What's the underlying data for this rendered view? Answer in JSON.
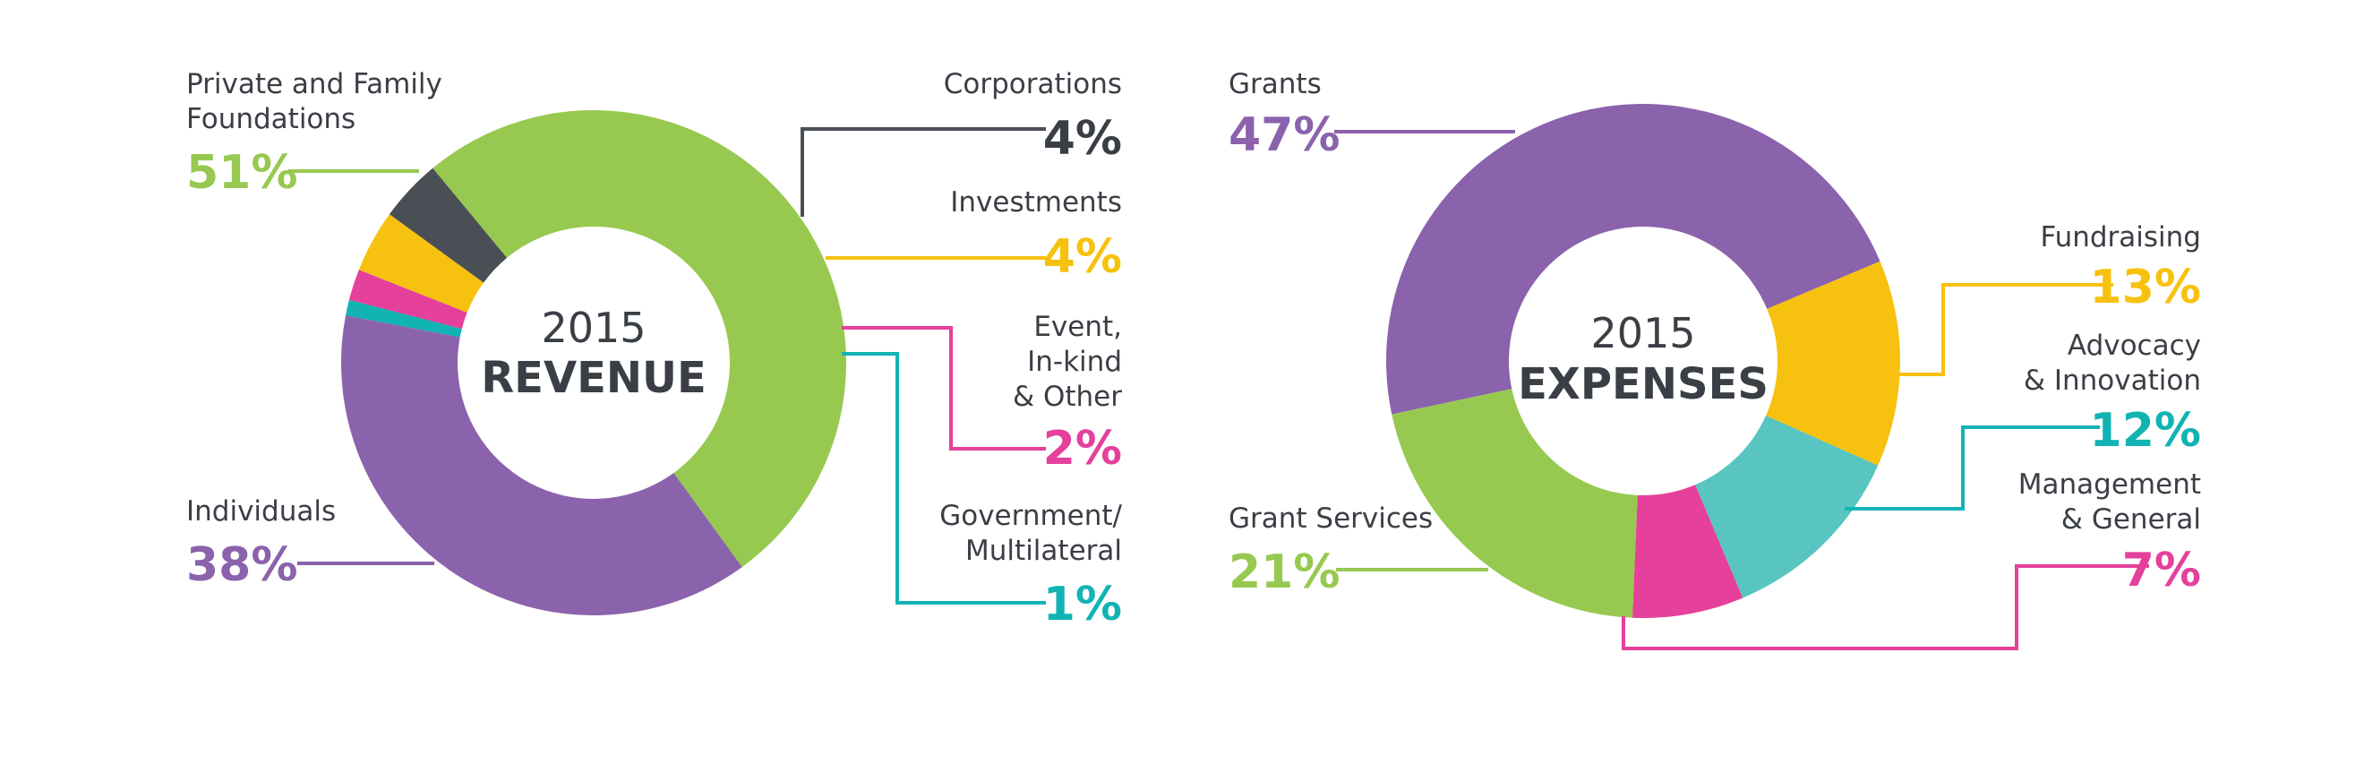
{
  "chart_data": [
    {
      "type": "pie",
      "donut": true,
      "year": "2015",
      "title": "REVENUE",
      "slices": [
        {
          "label": "Private and Family Foundations",
          "label_lines": [
            "Private and Family",
            "Foundations"
          ],
          "value": 51,
          "value_text": "51%",
          "color": "#97c950"
        },
        {
          "label": "Corporations",
          "label_lines": [
            "Corporations"
          ],
          "value": 4,
          "value_text": "4%",
          "color": "#4a4e55",
          "text_color": "#3a3e45"
        },
        {
          "label": "Investments",
          "label_lines": [
            "Investments"
          ],
          "value": 4,
          "value_text": "4%",
          "color": "#f7c10f"
        },
        {
          "label": "Event, In-kind & Other",
          "label_lines": [
            "Event,",
            "In-kind",
            "& Other"
          ],
          "value": 2,
          "value_text": "2%",
          "color": "#e5409b"
        },
        {
          "label": "Government/ Multilateral",
          "label_lines": [
            "Government/",
            "Multilateral"
          ],
          "value": 1,
          "value_text": "1%",
          "color": "#11b3b3"
        },
        {
          "label": "Individuals",
          "label_lines": [
            "Individuals"
          ],
          "value": 38,
          "value_text": "38%",
          "color": "#8b62ac"
        }
      ]
    },
    {
      "type": "pie",
      "donut": true,
      "year": "2015",
      "title": "EXPENSES",
      "slices": [
        {
          "label": "Grants",
          "label_lines": [
            "Grants"
          ],
          "value": 47,
          "value_text": "47%",
          "color": "#8b62ac"
        },
        {
          "label": "Fundraising",
          "label_lines": [
            "Fundraising"
          ],
          "value": 13,
          "value_text": "13%",
          "color": "#f7c10f"
        },
        {
          "label": "Advocacy & Innovation",
          "label_lines": [
            "Advocacy",
            "& Innovation"
          ],
          "value": 12,
          "value_text": "12%",
          "color": "#58c5c0",
          "text_color": "#11b3b3"
        },
        {
          "label": "Management & General",
          "label_lines": [
            "Management",
            "& General"
          ],
          "value": 7,
          "value_text": "7%",
          "color": "#e5409b"
        },
        {
          "label": "Grant Services",
          "label_lines": [
            "Grant Services"
          ],
          "value": 21,
          "value_text": "21%",
          "color": "#97c950"
        }
      ]
    }
  ]
}
